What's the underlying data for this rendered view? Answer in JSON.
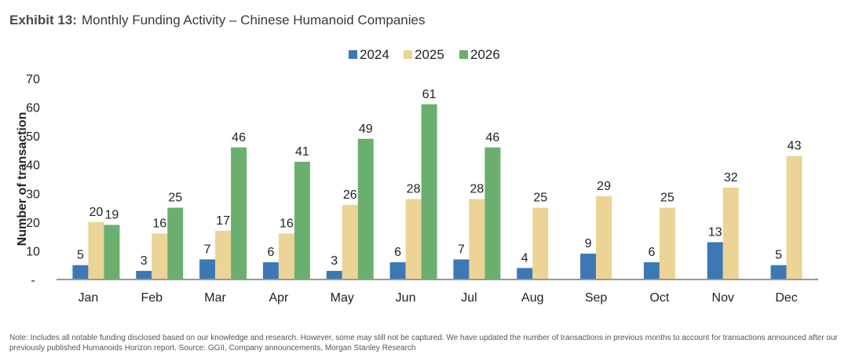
{
  "exhibit_label": "Exhibit 13:",
  "title": "Monthly Funding Activity – Chinese Humanoid Companies",
  "note": "Note: Includes all notable funding disclosed based on our knowledge and research. However, some may still not be captured. We have updated the number of transactions in previous months to account for transactions announced after our previously published Humanoids Horizon report. Source: GGII, Company announcements, Morgan Stanley Research",
  "chart_data": {
    "type": "bar",
    "title": "Monthly Funding Activity – Chinese Humanoid Companies",
    "xlabel": "",
    "ylabel": "Number of transaction",
    "ylim": [
      0,
      70
    ],
    "yticks": [
      "-",
      "10",
      "20",
      "30",
      "40",
      "50",
      "60",
      "70"
    ],
    "legend_position": "top-center",
    "grid": false,
    "categories": [
      "Jan",
      "Feb",
      "Mar",
      "Apr",
      "May",
      "Jun",
      "Jul",
      "Aug",
      "Sep",
      "Oct",
      "Nov",
      "Dec"
    ],
    "series": [
      {
        "name": "2024",
        "color": "#3C78B4",
        "values": [
          5,
          3,
          7,
          6,
          3,
          6,
          7,
          4,
          9,
          6,
          13,
          5
        ]
      },
      {
        "name": "2025",
        "color": "#ECD396",
        "values": [
          20,
          16,
          17,
          16,
          26,
          28,
          28,
          25,
          29,
          25,
          32,
          43
        ]
      },
      {
        "name": "2026",
        "color": "#6AAF6E",
        "values": [
          19,
          25,
          46,
          41,
          49,
          61,
          46,
          null,
          null,
          null,
          null,
          null
        ]
      }
    ]
  }
}
